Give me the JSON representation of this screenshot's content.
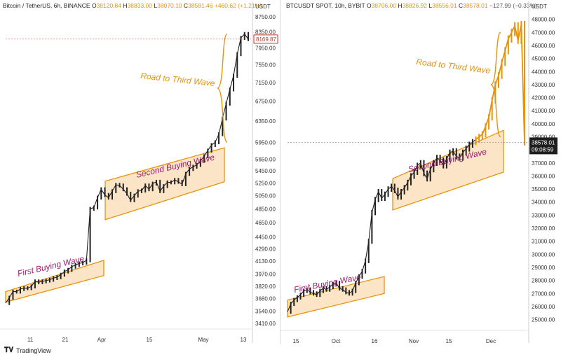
{
  "left_panel": {
    "header": {
      "symbol": "Bitcoin / TetherUS, 6h, BINANCE",
      "o_label": "O",
      "o_value": "38120.84",
      "h_label": "H",
      "h_value": "38833.00",
      "l_label": "L",
      "l_value": "38070.10",
      "c_label": "C",
      "c_value": "38581.46",
      "change": "+460.62 (+1.21%)"
    },
    "currency": "USDT",
    "price_badge": "8169.87"
  },
  "right_panel": {
    "header": {
      "symbol": "BTCUSDT SPOT, 10h, BYBIT",
      "o_label": "O",
      "o_value": "38706.00",
      "h_label": "H",
      "h_value": "38826.92",
      "l_label": "L",
      "l_value": "38556.01",
      "c_label": "C",
      "c_value": "38578.01",
      "change": "−127.99 (−0.33%)"
    },
    "currency": "USDT",
    "price_badge": "38578.01",
    "timer_badge": "09:08:59"
  },
  "footer": {
    "logo_text": "TradingView"
  },
  "colors": {
    "accent": "#e6940a",
    "channel_fill": "#fbdcb3",
    "label_magenta": "#9c1f6e",
    "candle": "#222222"
  },
  "chart_data": [
    {
      "type": "line",
      "y_scale": "log",
      "ylim": [
        3410,
        8750
      ],
      "y_ticks": [
        "8750.00",
        "8350.00",
        "7950.00",
        "7550.00",
        "7150.00",
        "6750.00",
        "6350.00",
        "5950.00",
        "5650.00",
        "5450.00",
        "5250.00",
        "5050.00",
        "4850.00",
        "4650.00",
        "4450.00",
        "4290.00",
        "4130.00",
        "3970.00",
        "3820.00",
        "3680.00",
        "3540.00",
        "3410.00"
      ],
      "x_ticks": [
        "11",
        "21",
        "Apr",
        "15",
        "May",
        "13"
      ],
      "annotations": [
        "First Buying Wave",
        "Second Buying Wave",
        "Road to Third Wave"
      ],
      "series": [
        {
          "values": [
            3630,
            3690,
            3760,
            3760,
            3790,
            3800,
            3800,
            3820,
            3880,
            3870,
            3880,
            3890,
            3900,
            3920,
            3930,
            3960,
            4000,
            4020,
            4060,
            4080,
            4100,
            4110,
            4140,
            4850,
            4870,
            5020,
            5150,
            5060,
            5020,
            5120,
            5220,
            5210,
            5150,
            5080,
            4980,
            5050,
            5120,
            5130,
            5210,
            5150,
            5240,
            5270,
            5120,
            5200,
            5260,
            5260,
            5300,
            5270,
            5230,
            5400,
            5480,
            5520,
            5550,
            5620,
            5700,
            5800,
            5900,
            5950,
            6100,
            6400,
            6700,
            7000,
            7300,
            7800,
            8200,
            8300,
            8170
          ]
        }
      ]
    },
    {
      "type": "line",
      "ylim": [
        24600,
        48200
      ],
      "y_ticks": [
        "48000.00",
        "47000.00",
        "46000.00",
        "45000.00",
        "44000.00",
        "43000.00",
        "42000.00",
        "41000.00",
        "40000.00",
        "39000.00",
        "38000.00",
        "37000.00",
        "36000.00",
        "35000.00",
        "34000.00",
        "33000.00",
        "32000.00",
        "31000.00",
        "30000.00",
        "29000.00",
        "28000.00",
        "27000.00",
        "26000.00",
        "25000.00"
      ],
      "x_ticks": [
        "15",
        "Oct",
        "16",
        "Nov",
        "15",
        "Dec"
      ],
      "annotations": [
        "First Buying Wave",
        "Second Buying Wave",
        "Road to Third Wave"
      ],
      "series": [
        {
          "values": [
            25600,
            26200,
            26500,
            26700,
            26900,
            27200,
            27300,
            27100,
            27000,
            26900,
            27200,
            27400,
            27300,
            27500,
            27700,
            27800,
            27400,
            27300,
            27100,
            27000,
            27200,
            27800,
            28300,
            28700,
            29500,
            31000,
            33200,
            34200,
            34800,
            34300,
            34600,
            35000,
            35200,
            34900,
            34400,
            34800,
            35100,
            35500,
            36000,
            36300,
            36800,
            37000,
            36200,
            35800,
            36500,
            37000,
            37400,
            37200,
            36800,
            37300,
            37800,
            37900,
            37500,
            37400,
            37800,
            38100,
            38400,
            38600,
            38800,
            39000,
            39200,
            39800,
            40500,
            41800,
            43000,
            43700,
            44700,
            45600,
            46500,
            47000,
            47500,
            46400,
            47600,
            38578
          ]
        }
      ]
    }
  ]
}
